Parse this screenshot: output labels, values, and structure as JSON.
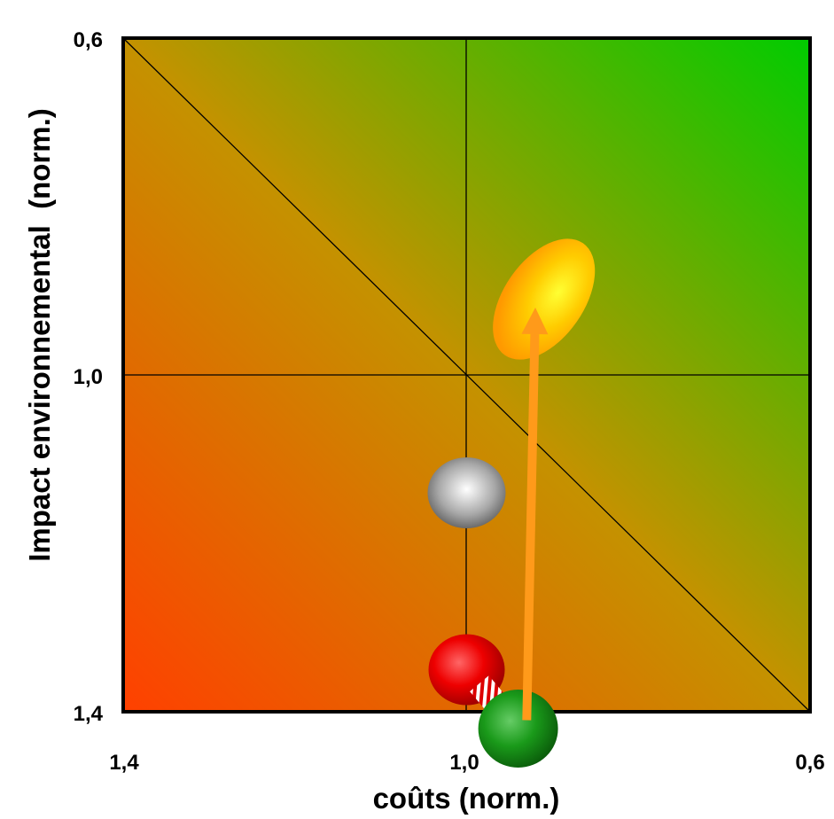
{
  "chart_data": {
    "type": "scatter",
    "title": "",
    "xlabel": "coûts (norm.)",
    "ylabel": "Impact environnemental  (norm.)",
    "xlim": [
      1.4,
      0.6
    ],
    "ylim": [
      1.4,
      0.6
    ],
    "x_reversed": true,
    "y_reversed": true,
    "x_ticks": [
      "1,4",
      "1,0",
      "0,6"
    ],
    "y_ticks": [
      "0,6",
      "1,0",
      "1,4"
    ],
    "grid": false,
    "reference_lines": {
      "vertical_at": 1.0,
      "horizontal_at": 1.0,
      "diagonal": "from (1,4 ; 0,6) to (0,6 ; 1,4)"
    },
    "background_gradient": {
      "low_performance": "#ff4000",
      "high_performance": "#00cc00"
    },
    "points": [
      {
        "x": 1.0,
        "y": 1.14,
        "color": "#b0b0b0"
      },
      {
        "x": 1.0,
        "y": 1.35,
        "color": "#ff0000"
      },
      {
        "x": 0.94,
        "y": 1.42,
        "color": "#1a9a1a"
      },
      {
        "x": 0.91,
        "y": 0.91,
        "color": "#ffcc00",
        "shape": "ellipse"
      }
    ],
    "arrow": {
      "from": [
        0.93,
        1.41
      ],
      "to": [
        0.92,
        0.92
      ],
      "color": "#ff9a1a"
    }
  }
}
